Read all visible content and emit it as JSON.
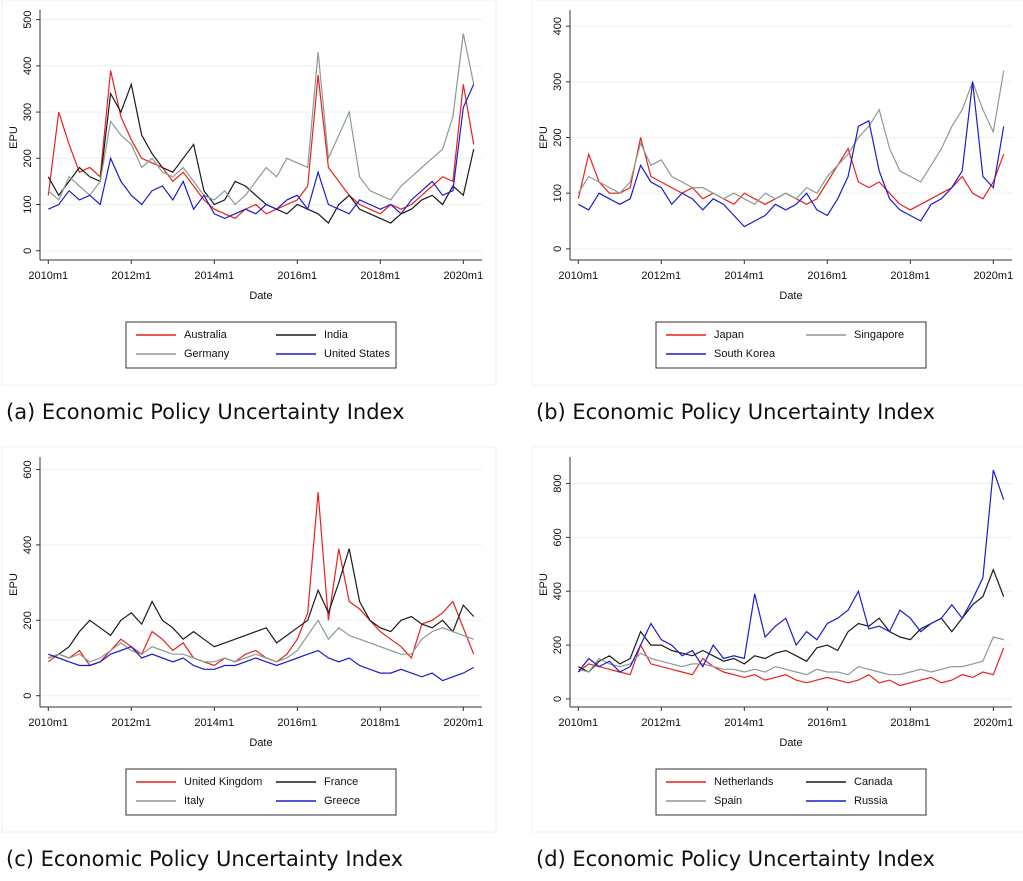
{
  "chart_data": [
    {
      "type": "line",
      "caption": "(a) Economic Policy Uncertainty Index",
      "xlabel": "Date",
      "ylabel": "EPU",
      "legend": "bottom",
      "x": [
        2010,
        2010.25,
        2010.5,
        2010.75,
        2011,
        2011.25,
        2011.5,
        2011.75,
        2012,
        2012.25,
        2012.5,
        2012.75,
        2013,
        2013.25,
        2013.5,
        2013.75,
        2014,
        2014.25,
        2014.5,
        2014.75,
        2015,
        2015.25,
        2015.5,
        2015.75,
        2016,
        2016.25,
        2016.5,
        2016.75,
        2017,
        2017.25,
        2017.5,
        2017.75,
        2018,
        2018.25,
        2018.5,
        2018.75,
        2019,
        2019.25,
        2019.5,
        2019.75,
        2020,
        2020.25
      ],
      "xlim": [
        2009.8,
        2020.45
      ],
      "xticks": [
        {
          "value": 2010,
          "label": "2010m1"
        },
        {
          "value": 2012,
          "label": "2012m1"
        },
        {
          "value": 2014,
          "label": "2014m1"
        },
        {
          "value": 2016,
          "label": "2016m1"
        },
        {
          "value": 2018,
          "label": "2018m1"
        },
        {
          "value": 2020,
          "label": "2020m1"
        }
      ],
      "ylim": [
        -20,
        510
      ],
      "yticks": [
        0,
        100,
        200,
        300,
        400,
        500
      ],
      "series": [
        {
          "name": "Australia",
          "color": "#e8211c",
          "values": [
            120,
            300,
            230,
            170,
            180,
            160,
            390,
            290,
            240,
            200,
            190,
            180,
            150,
            170,
            140,
            110,
            90,
            80,
            70,
            90,
            100,
            80,
            90,
            100,
            110,
            140,
            380,
            180,
            150,
            120,
            100,
            90,
            80,
            100,
            90,
            100,
            120,
            140,
            160,
            150,
            360,
            230
          ]
        },
        {
          "name": "India",
          "color": "#1a1a1a",
          "values": [
            160,
            120,
            150,
            180,
            160,
            150,
            340,
            300,
            360,
            250,
            210,
            180,
            170,
            200,
            230,
            130,
            100,
            110,
            150,
            140,
            120,
            100,
            90,
            80,
            100,
            90,
            80,
            60,
            100,
            120,
            90,
            80,
            70,
            60,
            80,
            90,
            110,
            120,
            100,
            140,
            120,
            220
          ]
        },
        {
          "name": "Germany",
          "color": "#8a9c92",
          "values": [
            130,
            110,
            160,
            140,
            120,
            150,
            280,
            250,
            230,
            180,
            200,
            170,
            160,
            180,
            150,
            120,
            110,
            130,
            100,
            120,
            150,
            180,
            160,
            200,
            190,
            180,
            430,
            200,
            250,
            300,
            160,
            130,
            120,
            110,
            140,
            160,
            180,
            200,
            220,
            290,
            470,
            360
          ]
        },
        {
          "name": "United States",
          "color": "#1c1ccc",
          "values": [
            90,
            100,
            130,
            110,
            120,
            100,
            200,
            150,
            120,
            100,
            130,
            140,
            110,
            150,
            90,
            120,
            80,
            70,
            80,
            90,
            80,
            100,
            90,
            110,
            120,
            90,
            170,
            100,
            90,
            80,
            110,
            100,
            90,
            100,
            80,
            110,
            130,
            150,
            120,
            130,
            310,
            360
          ]
        }
      ]
    },
    {
      "type": "line",
      "caption": "(b) Economic Policy Uncertainty Index",
      "xlabel": "Date",
      "ylabel": "EPU",
      "legend": "bottom",
      "x": [
        2010,
        2010.25,
        2010.5,
        2010.75,
        2011,
        2011.25,
        2011.5,
        2011.75,
        2012,
        2012.25,
        2012.5,
        2012.75,
        2013,
        2013.25,
        2013.5,
        2013.75,
        2014,
        2014.25,
        2014.5,
        2014.75,
        2015,
        2015.25,
        2015.5,
        2015.75,
        2016,
        2016.25,
        2016.5,
        2016.75,
        2017,
        2017.25,
        2017.5,
        2017.75,
        2018,
        2018.25,
        2018.5,
        2018.75,
        2019,
        2019.25,
        2019.5,
        2019.75,
        2020,
        2020.25
      ],
      "xlim": [
        2009.8,
        2020.45
      ],
      "xticks": [
        {
          "value": 2010,
          "label": "2010m1"
        },
        {
          "value": 2012,
          "label": "2012m1"
        },
        {
          "value": 2014,
          "label": "2014m1"
        },
        {
          "value": 2016,
          "label": "2016m1"
        },
        {
          "value": 2018,
          "label": "2018m1"
        },
        {
          "value": 2020,
          "label": "2020m1"
        }
      ],
      "ylim": [
        -20,
        420
      ],
      "yticks": [
        0,
        100,
        200,
        300,
        400
      ],
      "series": [
        {
          "name": "Japan",
          "color": "#e8211c",
          "values": [
            90,
            170,
            120,
            100,
            100,
            110,
            200,
            130,
            120,
            110,
            100,
            110,
            90,
            100,
            90,
            80,
            100,
            90,
            80,
            90,
            100,
            90,
            80,
            90,
            120,
            150,
            180,
            120,
            110,
            120,
            100,
            80,
            70,
            80,
            90,
            100,
            110,
            130,
            100,
            90,
            120,
            170
          ]
        },
        {
          "name": "Singapore",
          "color": "#8a9c92",
          "values": [
            100,
            130,
            120,
            110,
            100,
            120,
            190,
            150,
            160,
            130,
            120,
            110,
            110,
            100,
            90,
            100,
            90,
            80,
            100,
            90,
            100,
            90,
            110,
            100,
            130,
            150,
            170,
            200,
            220,
            250,
            180,
            140,
            130,
            120,
            150,
            180,
            220,
            250,
            300,
            250,
            210,
            320
          ]
        },
        {
          "name": "South Korea",
          "color": "#1c1ccc",
          "values": [
            80,
            70,
            100,
            90,
            80,
            90,
            150,
            120,
            110,
            80,
            100,
            90,
            70,
            90,
            80,
            60,
            40,
            50,
            60,
            80,
            70,
            80,
            100,
            70,
            60,
            90,
            130,
            220,
            230,
            140,
            90,
            70,
            60,
            50,
            80,
            90,
            110,
            140,
            300,
            130,
            110,
            220
          ]
        }
      ]
    },
    {
      "type": "line",
      "caption": "(c) Economic Policy Uncertainty Index",
      "xlabel": "Date",
      "ylabel": "EPU",
      "legend": "bottom",
      "x": [
        2010,
        2010.25,
        2010.5,
        2010.75,
        2011,
        2011.25,
        2011.5,
        2011.75,
        2012,
        2012.25,
        2012.5,
        2012.75,
        2013,
        2013.25,
        2013.5,
        2013.75,
        2014,
        2014.25,
        2014.5,
        2014.75,
        2015,
        2015.25,
        2015.5,
        2015.75,
        2016,
        2016.25,
        2016.5,
        2016.75,
        2017,
        2017.25,
        2017.5,
        2017.75,
        2018,
        2018.25,
        2018.5,
        2018.75,
        2019,
        2019.25,
        2019.5,
        2019.75,
        2020,
        2020.25
      ],
      "xlim": [
        2009.8,
        2020.45
      ],
      "xticks": [
        {
          "value": 2010,
          "label": "2010m1"
        },
        {
          "value": 2012,
          "label": "2012m1"
        },
        {
          "value": 2014,
          "label": "2014m1"
        },
        {
          "value": 2016,
          "label": "2016m1"
        },
        {
          "value": 2018,
          "label": "2018m1"
        },
        {
          "value": 2020,
          "label": "2020m1"
        }
      ],
      "ylim": [
        -30,
        620
      ],
      "yticks": [
        0,
        200,
        400,
        600
      ],
      "series": [
        {
          "name": "United Kingdom",
          "color": "#e8211c",
          "values": [
            90,
            110,
            100,
            120,
            80,
            90,
            120,
            150,
            130,
            110,
            170,
            150,
            120,
            140,
            100,
            90,
            80,
            100,
            90,
            110,
            120,
            100,
            90,
            110,
            150,
            220,
            540,
            200,
            390,
            250,
            230,
            200,
            170,
            150,
            130,
            100,
            190,
            200,
            220,
            250,
            180,
            110
          ]
        },
        {
          "name": "France",
          "color": "#1a1a1a",
          "values": [
            100,
            110,
            130,
            170,
            200,
            180,
            160,
            200,
            220,
            190,
            250,
            200,
            180,
            150,
            170,
            150,
            130,
            140,
            150,
            160,
            170,
            180,
            140,
            160,
            180,
            200,
            280,
            220,
            300,
            390,
            250,
            200,
            180,
            170,
            200,
            210,
            190,
            180,
            200,
            170,
            240,
            210
          ]
        },
        {
          "name": "Italy",
          "color": "#8a9c92",
          "values": [
            100,
            110,
            100,
            110,
            90,
            100,
            120,
            140,
            120,
            110,
            130,
            120,
            110,
            110,
            100,
            90,
            90,
            100,
            90,
            100,
            110,
            100,
            90,
            100,
            120,
            160,
            200,
            150,
            180,
            160,
            150,
            140,
            130,
            120,
            110,
            110,
            150,
            170,
            180,
            170,
            160,
            150
          ]
        },
        {
          "name": "Greece",
          "color": "#1c1ccc",
          "values": [
            110,
            100,
            90,
            80,
            80,
            90,
            110,
            120,
            130,
            100,
            110,
            100,
            90,
            100,
            80,
            70,
            70,
            80,
            80,
            90,
            100,
            90,
            80,
            90,
            100,
            110,
            120,
            100,
            90,
            100,
            80,
            70,
            60,
            60,
            70,
            60,
            50,
            60,
            40,
            50,
            60,
            75
          ]
        }
      ]
    },
    {
      "type": "line",
      "caption": "(d) Economic Policy Uncertainty Index",
      "xlabel": "Date",
      "ylabel": "EPU",
      "legend": "bottom",
      "x": [
        2010,
        2010.25,
        2010.5,
        2010.75,
        2011,
        2011.25,
        2011.5,
        2011.75,
        2012,
        2012.25,
        2012.5,
        2012.75,
        2013,
        2013.25,
        2013.5,
        2013.75,
        2014,
        2014.25,
        2014.5,
        2014.75,
        2015,
        2015.25,
        2015.5,
        2015.75,
        2016,
        2016.25,
        2016.5,
        2016.75,
        2017,
        2017.25,
        2017.5,
        2017.75,
        2018,
        2018.25,
        2018.5,
        2018.75,
        2019,
        2019.25,
        2019.5,
        2019.75,
        2020,
        2020.25
      ],
      "xlim": [
        2009.8,
        2020.45
      ],
      "xticks": [
        {
          "value": 2010,
          "label": "2010m1"
        },
        {
          "value": 2012,
          "label": "2012m1"
        },
        {
          "value": 2014,
          "label": "2014m1"
        },
        {
          "value": 2016,
          "label": "2016m1"
        },
        {
          "value": 2018,
          "label": "2018m1"
        },
        {
          "value": 2020,
          "label": "2020m1"
        }
      ],
      "ylim": [
        -30,
        880
      ],
      "yticks": [
        0,
        200,
        400,
        600,
        800
      ],
      "series": [
        {
          "name": "Netherlands",
          "color": "#e8211c",
          "values": [
            100,
            130,
            120,
            110,
            100,
            90,
            200,
            130,
            120,
            110,
            100,
            90,
            150,
            120,
            100,
            90,
            80,
            90,
            70,
            80,
            90,
            70,
            60,
            70,
            80,
            70,
            60,
            70,
            90,
            60,
            70,
            50,
            60,
            70,
            80,
            60,
            70,
            90,
            80,
            100,
            90,
            190
          ]
        },
        {
          "name": "Canada",
          "color": "#1a1a1a",
          "values": [
            120,
            100,
            140,
            160,
            130,
            150,
            250,
            200,
            200,
            180,
            170,
            160,
            180,
            160,
            140,
            150,
            130,
            160,
            150,
            170,
            180,
            160,
            140,
            190,
            200,
            180,
            250,
            280,
            270,
            300,
            250,
            230,
            220,
            260,
            280,
            300,
            250,
            300,
            350,
            380,
            480,
            380
          ]
        },
        {
          "name": "Spain",
          "color": "#8a9c92",
          "values": [
            110,
            100,
            150,
            130,
            120,
            130,
            170,
            150,
            140,
            130,
            120,
            130,
            130,
            120,
            110,
            110,
            100,
            110,
            100,
            120,
            110,
            100,
            90,
            110,
            100,
            100,
            90,
            120,
            110,
            100,
            90,
            90,
            100,
            110,
            100,
            110,
            120,
            120,
            130,
            140,
            230,
            220
          ]
        },
        {
          "name": "Russia",
          "color": "#1c1ccc",
          "values": [
            100,
            150,
            120,
            140,
            100,
            120,
            200,
            280,
            220,
            200,
            160,
            180,
            120,
            200,
            150,
            160,
            150,
            390,
            230,
            270,
            300,
            200,
            250,
            220,
            280,
            300,
            330,
            400,
            260,
            270,
            250,
            330,
            300,
            250,
            280,
            300,
            350,
            300,
            370,
            450,
            850,
            740
          ]
        }
      ]
    }
  ]
}
